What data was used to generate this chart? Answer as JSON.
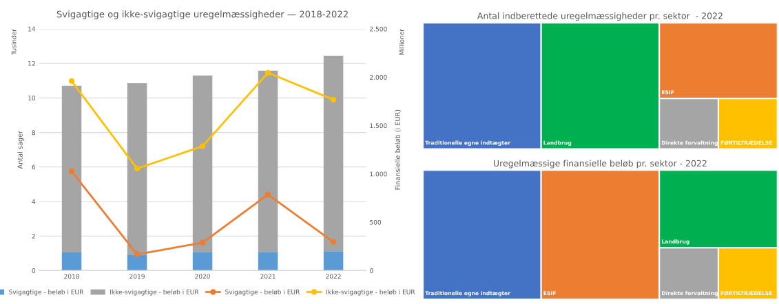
{
  "chart_data": [
    {
      "type": "bar",
      "stacked": true,
      "title": "Svigagtige og ikke-svigagtige uregelmæssigheder — 2018-2022",
      "ylabel": "Antal sager",
      "y2label": "Finansielle beløb (i EUR)",
      "annotations": [
        "Tusinder",
        "Millioner"
      ],
      "categories": [
        "2018",
        "2019",
        "2020",
        "2021",
        "2022"
      ],
      "series": [
        {
          "name": "Svigagtige - beløb i EUR",
          "color": "#5b9bd5",
          "values": [
            1.05,
            0.92,
            1.08,
            1.08,
            1.12
          ]
        },
        {
          "name": "Ikke-svigagtige - beløb i EUR",
          "color": "#a5a5a5",
          "values": [
            9.65,
            9.93,
            10.22,
            10.5,
            11.33
          ]
        },
        {
          "name": "Svigagtige - beløb i EUR",
          "type": "line",
          "axis": "y2",
          "color": "#ed7d31",
          "values": [
            1027,
            168,
            289,
            787,
            295
          ]
        },
        {
          "name": "Ikke-svigagtige - beløb i EUR",
          "type": "line",
          "axis": "y2",
          "color": "#ffc000",
          "values": [
            1960,
            1055,
            1286,
            2046,
            1768
          ]
        }
      ],
      "ylim": [
        0,
        14
      ],
      "yticks": [
        0,
        2,
        4,
        6,
        8,
        10,
        12,
        14
      ],
      "y2lim": [
        0,
        2500
      ],
      "y2ticks": [
        0,
        500,
        {
          "value": 1000,
          "label": "1.000"
        },
        {
          "value": 1500,
          "label": "1.500"
        },
        {
          "value": 2000,
          "label": "2.000"
        },
        {
          "value": 2500,
          "label": "2.500"
        }
      ],
      "grid": "y",
      "legend": "bottom",
      "marker": "circle",
      "line_style": "solid"
    },
    {
      "type": "other",
      "title": "Antal indberettede uregelmæssigheder pr. sektor  - 2022",
      "categories": [
        "Traditionelle egne indtægter",
        "Landbrug",
        "ESIF",
        "Direkte forvaltning",
        "FØRTILTRÆDELSE"
      ],
      "colors": [
        "#4472c4",
        "#00b050",
        "#ed7d31",
        "#a5a5a5",
        "#ffc000"
      ]
    },
    {
      "type": "other",
      "title": "Uregelmæssige finansielle beløb pr. sektor - 2022",
      "categories": [
        "Traditionelle egne indtægter",
        "ESIF",
        "Landbrug",
        "Direkte forvaltning",
        "FØRTILTRÆDELSE"
      ],
      "colors": [
        "#4472c4",
        "#ed7d31",
        "#00b050",
        "#a5a5a5",
        "#ffc000"
      ]
    }
  ]
}
